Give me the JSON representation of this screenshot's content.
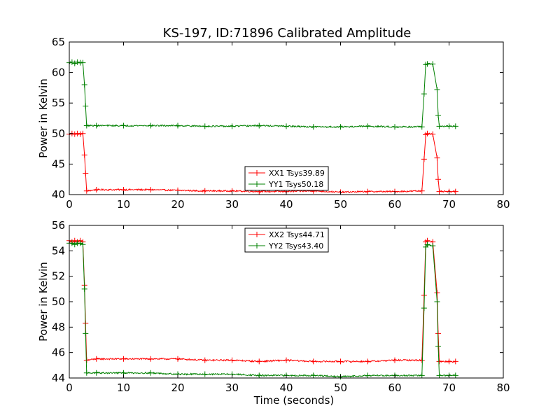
{
  "title": "KS-197, ID:71896 Calibrated Amplitude",
  "chart_data": [
    {
      "type": "line",
      "title": "KS-197, ID:71896 Calibrated Amplitude",
      "xlabel": "",
      "ylabel": "Power in Kelvin",
      "xlim": [
        0,
        80
      ],
      "ylim": [
        40,
        65
      ],
      "xticks": [
        0,
        10,
        20,
        30,
        40,
        50,
        60,
        70,
        80
      ],
      "yticks": [
        40,
        45,
        50,
        55,
        60,
        65
      ],
      "grid": false,
      "legend_position": "lower-center",
      "series": [
        {
          "name": "XX1 Tsys39.89",
          "color": "#ff0000",
          "x": [
            0,
            0.5,
            1,
            1.5,
            2,
            2.5,
            2.8,
            3.0,
            3.2,
            5,
            10,
            15,
            20,
            25,
            30,
            35,
            40,
            45,
            50,
            55,
            60,
            65,
            65.4,
            65.7,
            66,
            67,
            67.8,
            68.0,
            68.2,
            70,
            71.2
          ],
          "y": [
            49.9,
            50.0,
            49.9,
            50.0,
            49.9,
            50.0,
            46.5,
            43.5,
            40.6,
            40.8,
            40.8,
            40.8,
            40.7,
            40.6,
            40.6,
            40.5,
            40.5,
            40.6,
            40.4,
            40.5,
            40.5,
            40.6,
            45.8,
            49.8,
            50.0,
            49.9,
            46.0,
            42.5,
            40.5,
            40.5,
            40.5
          ]
        },
        {
          "name": "YY1 Tsys50.18",
          "color": "#008000",
          "x": [
            0,
            0.5,
            1,
            1.5,
            2,
            2.5,
            2.8,
            3.0,
            3.2,
            5,
            10,
            15,
            20,
            25,
            30,
            35,
            40,
            45,
            50,
            55,
            60,
            65,
            65.4,
            65.7,
            66,
            67,
            67.8,
            68.0,
            68.2,
            70,
            71.2
          ],
          "y": [
            61.6,
            61.7,
            61.5,
            61.7,
            61.6,
            61.6,
            58.0,
            54.5,
            51.3,
            51.3,
            51.3,
            51.3,
            51.3,
            51.2,
            51.2,
            51.3,
            51.2,
            51.1,
            51.1,
            51.2,
            51.1,
            51.1,
            56.5,
            61.3,
            61.4,
            61.4,
            57.2,
            53.0,
            51.2,
            51.2,
            51.2
          ]
        }
      ]
    },
    {
      "type": "line",
      "title": "",
      "xlabel": "Time (seconds)",
      "ylabel": "Power in Kelvin",
      "xlim": [
        0,
        80
      ],
      "ylim": [
        44,
        56
      ],
      "xticks": [
        0,
        10,
        20,
        30,
        40,
        50,
        60,
        70,
        80
      ],
      "yticks": [
        44,
        46,
        48,
        50,
        52,
        54,
        56
      ],
      "grid": false,
      "legend_position": "upper-center",
      "series": [
        {
          "name": "XX2 Tsys44.71",
          "color": "#ff0000",
          "x": [
            0,
            0.5,
            1,
            1.5,
            2,
            2.5,
            2.8,
            3.0,
            3.2,
            5,
            10,
            15,
            20,
            25,
            30,
            35,
            40,
            45,
            50,
            55,
            60,
            65,
            65.4,
            65.7,
            66,
            67,
            67.8,
            68.0,
            68.2,
            70,
            71.2
          ],
          "y": [
            54.8,
            54.7,
            54.8,
            54.7,
            54.8,
            54.7,
            51.3,
            48.3,
            45.4,
            45.5,
            45.5,
            45.5,
            45.5,
            45.4,
            45.4,
            45.3,
            45.4,
            45.3,
            45.3,
            45.3,
            45.4,
            45.4,
            50.5,
            54.7,
            54.8,
            54.7,
            50.7,
            47.5,
            45.3,
            45.3,
            45.3
          ]
        },
        {
          "name": "YY2 Tsys43.40",
          "color": "#008000",
          "x": [
            0,
            0.5,
            1,
            1.5,
            2,
            2.5,
            2.8,
            3.0,
            3.2,
            5,
            10,
            15,
            20,
            25,
            30,
            35,
            40,
            45,
            50,
            55,
            60,
            65,
            65.4,
            65.7,
            66,
            67,
            67.8,
            68.0,
            68.2,
            70,
            71.2
          ],
          "y": [
            54.6,
            54.6,
            54.5,
            54.6,
            54.6,
            54.5,
            51.0,
            47.5,
            44.4,
            44.4,
            44.4,
            44.4,
            44.3,
            44.3,
            44.3,
            44.2,
            44.2,
            44.2,
            44.1,
            44.2,
            44.2,
            44.2,
            49.5,
            54.3,
            54.5,
            54.4,
            50.0,
            46.5,
            44.2,
            44.2,
            44.2
          ]
        }
      ]
    }
  ]
}
